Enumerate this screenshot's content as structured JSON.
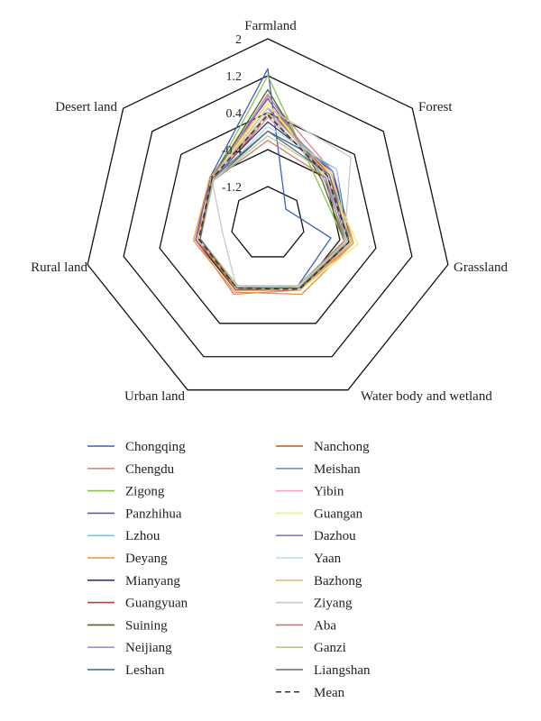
{
  "chart_data": {
    "type": "radar",
    "axes": [
      "Farmland",
      "Forest",
      "Grassland",
      "Water body and wetland",
      "Urban land",
      "Rural land",
      "Desert land"
    ],
    "ticks": [
      "-1.2",
      "-0.4",
      "0.4",
      "1.2",
      "2"
    ],
    "rlim": [
      -2,
      2
    ],
    "grid": true,
    "legend_position": "bottom",
    "series": [
      {
        "name": "Chongqing",
        "color": "#3b5fc0",
        "dash": false,
        "values": [
          1.35,
          -1.5,
          -0.6,
          -0.5,
          -0.5,
          -0.5,
          -0.4
        ]
      },
      {
        "name": "Chengdu",
        "color": "#e87f7f",
        "dash": false,
        "values": [
          0.75,
          -0.2,
          -0.1,
          -0.4,
          -0.3,
          -0.4,
          -0.5
        ]
      },
      {
        "name": "Zigong",
        "color": "#8dc04a",
        "dash": false,
        "values": [
          1.2,
          -0.6,
          -0.3,
          -0.5,
          -0.4,
          -0.45,
          -0.45
        ]
      },
      {
        "name": "Panzhihua",
        "color": "#7a4fa8",
        "dash": false,
        "values": [
          0.7,
          -0.4,
          -0.2,
          -0.4,
          -0.45,
          -0.4,
          -0.4
        ]
      },
      {
        "name": "Lzhou",
        "color": "#7ec6e8",
        "dash": false,
        "values": [
          0.4,
          -0.4,
          -0.2,
          -0.45,
          -0.5,
          -0.5,
          -0.45
        ]
      },
      {
        "name": "Deyang",
        "color": "#e8953a",
        "dash": false,
        "values": [
          0.6,
          -0.3,
          -0.1,
          -0.3,
          -0.35,
          -0.35,
          -0.4
        ]
      },
      {
        "name": "Mianyang",
        "color": "#2a3f7a",
        "dash": false,
        "values": [
          0.2,
          -0.2,
          -0.15,
          -0.4,
          -0.4,
          -0.45,
          -0.45
        ]
      },
      {
        "name": "Guangyuan",
        "color": "#a84a3a",
        "dash": false,
        "values": [
          0.3,
          -0.3,
          -0.25,
          -0.4,
          -0.45,
          -0.45,
          -0.5
        ]
      },
      {
        "name": "Suining",
        "color": "#4a6a1e",
        "dash": false,
        "values": [
          0.9,
          -0.5,
          -0.3,
          -0.45,
          -0.45,
          -0.45,
          -0.45
        ]
      },
      {
        "name": "Neijiang",
        "color": "#9a90c8",
        "dash": false,
        "values": [
          0.8,
          -0.45,
          -0.25,
          -0.45,
          -0.45,
          -0.45,
          -0.45
        ]
      },
      {
        "name": "Leshan",
        "color": "#2c6e8e",
        "dash": false,
        "values": [
          0.0,
          -0.1,
          -0.2,
          -0.4,
          -0.45,
          -0.45,
          -0.5
        ]
      },
      {
        "name": "Nanchong",
        "color": "#c0561a",
        "dash": false,
        "values": [
          0.5,
          -0.3,
          -0.2,
          -0.4,
          -0.4,
          -0.45,
          -0.45
        ]
      },
      {
        "name": "Meishan",
        "color": "#6a8fd8",
        "dash": false,
        "values": [
          0.4,
          -0.2,
          -0.3,
          -0.45,
          -0.5,
          -0.5,
          -0.5
        ]
      },
      {
        "name": "Yibin",
        "color": "#f2a6b8",
        "dash": false,
        "values": [
          0.3,
          -0.3,
          -0.2,
          -0.45,
          -0.45,
          -0.5,
          -0.45
        ]
      },
      {
        "name": "Guangan",
        "color": "#eef06a",
        "dash": false,
        "values": [
          0.6,
          -0.4,
          0.0,
          -0.4,
          -0.45,
          -0.45,
          -0.45
        ]
      },
      {
        "name": "Dazhou",
        "color": "#8a7ac0",
        "dash": false,
        "values": [
          0.5,
          -0.35,
          -0.25,
          -0.4,
          -0.45,
          -0.45,
          -0.45
        ]
      },
      {
        "name": "Yaan",
        "color": "#b8d8f0",
        "dash": false,
        "values": [
          0.1,
          -0.1,
          -0.25,
          -0.45,
          -0.5,
          -0.5,
          -0.5
        ]
      },
      {
        "name": "Bazhong",
        "color": "#e8c060",
        "dash": false,
        "values": [
          0.4,
          -0.25,
          -0.15,
          -0.4,
          -0.45,
          -0.45,
          -0.45
        ]
      },
      {
        "name": "Ziyang",
        "color": "#c8c8c8",
        "dash": false,
        "values": [
          0.5,
          0.3,
          -0.3,
          -0.45,
          -0.45,
          -1.0,
          -0.45
        ]
      },
      {
        "name": "Aba",
        "color": "#c07a6a",
        "dash": false,
        "values": [
          -0.2,
          -0.4,
          -0.3,
          -0.5,
          -0.5,
          -0.5,
          -0.5
        ]
      },
      {
        "name": "Ganzi",
        "color": "#b8c88a",
        "dash": false,
        "values": [
          -0.1,
          -0.3,
          -0.25,
          -0.5,
          -0.5,
          -0.5,
          -0.5
        ]
      },
      {
        "name": "Liangshan",
        "color": "#6a6a7a",
        "dash": false,
        "values": [
          0.0,
          -0.3,
          -0.2,
          -0.45,
          -0.45,
          -0.5,
          -0.45
        ]
      },
      {
        "name": "Mean",
        "color": "#333333",
        "dash": true,
        "values": [
          0.35,
          -0.35,
          -0.2,
          -0.42,
          -0.45,
          -0.47,
          -0.45
        ]
      }
    ]
  }
}
